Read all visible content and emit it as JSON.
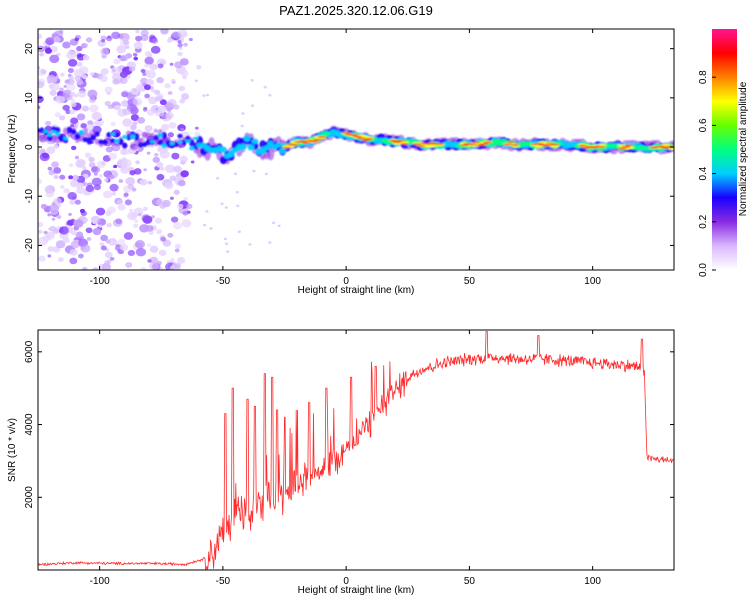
{
  "figure_title": "PAZ1.2025.320.12.06.G19",
  "chart_data": [
    {
      "type": "heatmap",
      "title": "PAZ1.2025.320.12.06.G19",
      "xlabel": "Height of straight line (km)",
      "ylabel": "Frequency (Hz)",
      "xlim": [
        -125,
        133
      ],
      "ylim": [
        -25,
        24
      ],
      "xticks": [
        -100,
        -50,
        0,
        50,
        100
      ],
      "yticks": [
        -20,
        -10,
        0,
        10,
        20
      ],
      "xtick_labels": [
        "-100",
        "-50",
        "0",
        "50",
        "100"
      ],
      "ytick_labels": [
        "-20",
        "-10",
        "0",
        "10",
        "20"
      ],
      "frequency_track": {
        "x": [
          -125,
          -115,
          -105,
          -95,
          -85,
          -75,
          -65,
          -60,
          -55,
          -50,
          -45,
          -40,
          -35,
          -30,
          -25,
          -20,
          -15,
          -10,
          -5,
          0,
          5,
          10,
          15,
          20,
          25,
          30,
          40,
          50,
          60,
          70,
          80,
          90,
          100,
          110,
          120,
          130
        ],
        "y": [
          3,
          2.5,
          2,
          1.5,
          1.5,
          1.5,
          1,
          0.5,
          -0.5,
          -1.5,
          -0.5,
          1,
          -0.5,
          -0.5,
          0,
          1,
          1,
          2,
          3,
          2.5,
          2,
          1.5,
          1.5,
          1,
          1,
          0.5,
          0.5,
          0.5,
          1,
          0.5,
          0.5,
          0.5,
          0,
          0,
          0,
          0
        ]
      },
      "noise_region_x": [
        -125,
        -65
      ],
      "colorbar": {
        "label": "Normalized spectral amplitude",
        "range": [
          0,
          1
        ],
        "ticks": [
          0,
          0.2,
          0.4,
          0.6,
          0.8
        ],
        "tick_labels": [
          "0.0",
          "0.2",
          "0.4",
          "0.6",
          "0.8"
        ],
        "colors": [
          "#ffffff",
          "#d9b8ff",
          "#8a2be2",
          "#1a00ff",
          "#00cfff",
          "#00ff7f",
          "#66ff00",
          "#ffff00",
          "#ff8000",
          "#ff0000",
          "#ff1493"
        ]
      }
    },
    {
      "type": "line",
      "xlabel": "Height of straight line (km)",
      "ylabel": "SNR (10 * v/v)",
      "xlim": [
        -125,
        133
      ],
      "ylim": [
        0,
        6600
      ],
      "xticks": [
        -100,
        -50,
        0,
        50,
        100
      ],
      "yticks": [
        2000,
        4000,
        6000
      ],
      "xtick_labels": [
        "-100",
        "-50",
        "0",
        "50",
        "100"
      ],
      "ytick_labels": [
        "2000",
        "4000",
        "6000"
      ],
      "color": "#ff2a2a",
      "series": [
        {
          "name": "SNR",
          "x": [
            -125,
            -110,
            -95,
            -80,
            -65,
            -58,
            -54,
            -50,
            -45,
            -40,
            -35,
            -30,
            -25,
            -20,
            -15,
            -10,
            -5,
            0,
            5,
            10,
            15,
            20,
            25,
            30,
            35,
            40,
            50,
            60,
            70,
            80,
            90,
            100,
            110,
            118,
            121,
            122,
            125,
            133
          ],
          "y": [
            150,
            200,
            180,
            180,
            160,
            300,
            500,
            1000,
            1600,
            1500,
            1700,
            1900,
            2100,
            2400,
            2600,
            2800,
            3000,
            3300,
            3700,
            4100,
            4500,
            4900,
            5300,
            5500,
            5600,
            5700,
            5800,
            5850,
            5800,
            5800,
            5750,
            5700,
            5650,
            5600,
            5500,
            3100,
            3050,
            3000
          ]
        }
      ],
      "spikes": [
        {
          "x": -49,
          "y": 4300
        },
        {
          "x": -46,
          "y": 5000
        },
        {
          "x": -40,
          "y": 4700
        },
        {
          "x": -37,
          "y": 4500
        },
        {
          "x": -33,
          "y": 5400
        },
        {
          "x": -30,
          "y": 5300
        },
        {
          "x": -28,
          "y": 4400
        },
        {
          "x": -25,
          "y": 4200
        },
        {
          "x": -20,
          "y": 4400
        },
        {
          "x": -15,
          "y": 4600
        },
        {
          "x": -8,
          "y": 5000
        },
        {
          "x": 2,
          "y": 5300
        },
        {
          "x": 12,
          "y": 5600
        },
        {
          "x": 57,
          "y": 6560
        },
        {
          "x": 78,
          "y": 6450
        },
        {
          "x": 120,
          "y": 6350
        }
      ]
    }
  ]
}
